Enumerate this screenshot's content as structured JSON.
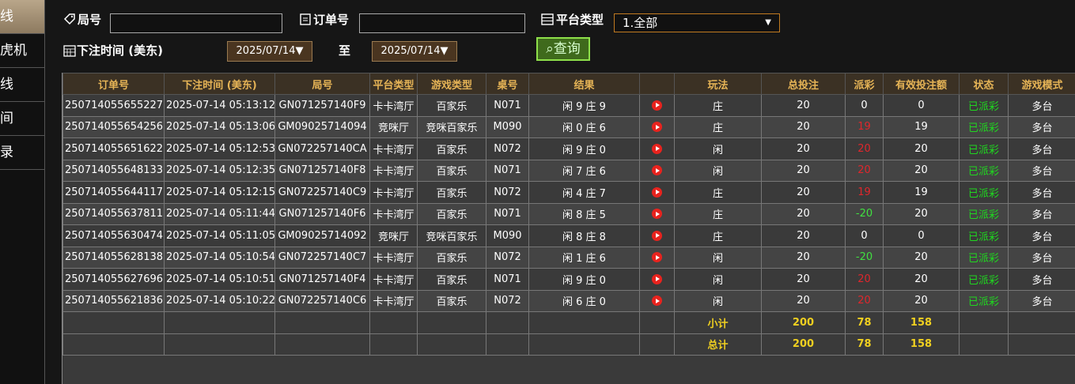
{
  "sidebar": {
    "items": [
      "线",
      "虎机",
      "线",
      "间",
      "录"
    ]
  },
  "filters": {
    "round_label": "局号",
    "order_label": "订单号",
    "platform_label": "平台类型",
    "platform_value": "1.全部",
    "time_label": "下注时间 (美东)",
    "date_from": "2025/07/14▼",
    "to_label": "至",
    "date_to": "2025/07/14▼",
    "query_button": "查询"
  },
  "table": {
    "headers": [
      "订单号",
      "下注时间 (美东)",
      "局号",
      "平台类型",
      "游戏类型",
      "桌号",
      "结果",
      "玩法",
      "总投注",
      "派彩",
      "有效投注额",
      "状态",
      "游戏模式"
    ],
    "rows": [
      [
        "250714055655227",
        "2025-07-14 05:13:12",
        "GN071257140F9",
        "卡卡湾厅",
        "百家乐",
        "N071",
        "闲 9 庄 9",
        "庄",
        20,
        0,
        0,
        "已派彩",
        "多台"
      ],
      [
        "250714055654256",
        "2025-07-14 05:13:06",
        "GM09025714094",
        "竞咪厅",
        "竞咪百家乐",
        "M090",
        "闲 0 庄 6",
        "庄",
        20,
        19,
        19,
        "已派彩",
        "多台"
      ],
      [
        "250714055651622",
        "2025-07-14 05:12:53",
        "GN072257140CA",
        "卡卡湾厅",
        "百家乐",
        "N072",
        "闲 9 庄 0",
        "闲",
        20,
        20,
        20,
        "已派彩",
        "多台"
      ],
      [
        "250714055648133",
        "2025-07-14 05:12:35",
        "GN071257140F8",
        "卡卡湾厅",
        "百家乐",
        "N071",
        "闲 7 庄 6",
        "闲",
        20,
        20,
        20,
        "已派彩",
        "多台"
      ],
      [
        "250714055644117",
        "2025-07-14 05:12:15",
        "GN072257140C9",
        "卡卡湾厅",
        "百家乐",
        "N072",
        "闲 4 庄 7",
        "庄",
        20,
        19,
        19,
        "已派彩",
        "多台"
      ],
      [
        "250714055637811",
        "2025-07-14 05:11:44",
        "GN071257140F6",
        "卡卡湾厅",
        "百家乐",
        "N071",
        "闲 8 庄 5",
        "庄",
        20,
        -20,
        20,
        "已派彩",
        "多台"
      ],
      [
        "250714055630474",
        "2025-07-14 05:11:05",
        "GM09025714092",
        "竞咪厅",
        "竞咪百家乐",
        "M090",
        "闲 8 庄 8",
        "庄",
        20,
        0,
        0,
        "已派彩",
        "多台"
      ],
      [
        "250714055628138",
        "2025-07-14 05:10:54",
        "GN072257140C7",
        "卡卡湾厅",
        "百家乐",
        "N072",
        "闲 1 庄 6",
        "闲",
        20,
        -20,
        20,
        "已派彩",
        "多台"
      ],
      [
        "250714055627696",
        "2025-07-14 05:10:51",
        "GN071257140F4",
        "卡卡湾厅",
        "百家乐",
        "N071",
        "闲 9 庄 0",
        "闲",
        20,
        20,
        20,
        "已派彩",
        "多台"
      ],
      [
        "250714055621836",
        "2025-07-14 05:10:22",
        "GN072257140C6",
        "卡卡湾厅",
        "百家乐",
        "N072",
        "闲 6 庄 0",
        "闲",
        20,
        20,
        20,
        "已派彩",
        "多台"
      ]
    ],
    "subtotal": {
      "label": "小计",
      "values": [
        200,
        78,
        158
      ]
    },
    "total": {
      "label": "总计",
      "values": [
        200,
        78,
        158
      ]
    }
  }
}
